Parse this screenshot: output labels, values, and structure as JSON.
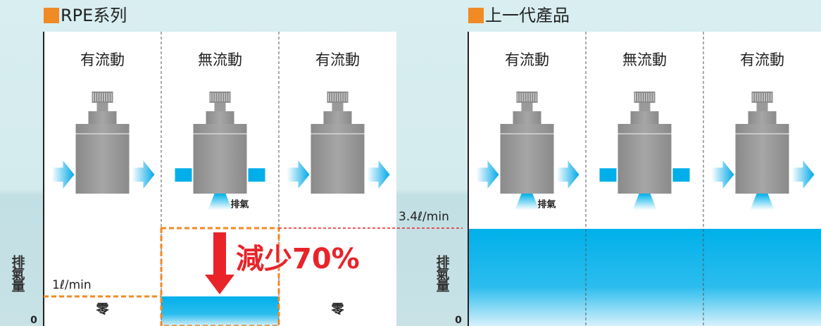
{
  "left_panel": {
    "title": "RPE系列",
    "y_label": "排氣量",
    "origin": "0",
    "level_label": "1ℓ/min",
    "reduction_label": "減少70%",
    "columns": [
      {
        "label": "有流動",
        "bottom_label": "零"
      },
      {
        "label": "無流動",
        "exhaust_label": "排氣"
      },
      {
        "label": "有流動",
        "bottom_label": "零"
      }
    ]
  },
  "right_panel": {
    "title": "上一代產品",
    "y_label": "排氣量",
    "origin": "0",
    "level_label": "3.4ℓ/min",
    "columns": [
      {
        "label": "有流動",
        "exhaust_label": "排氣"
      },
      {
        "label": "無流動"
      },
      {
        "label": "有流動"
      }
    ]
  }
}
